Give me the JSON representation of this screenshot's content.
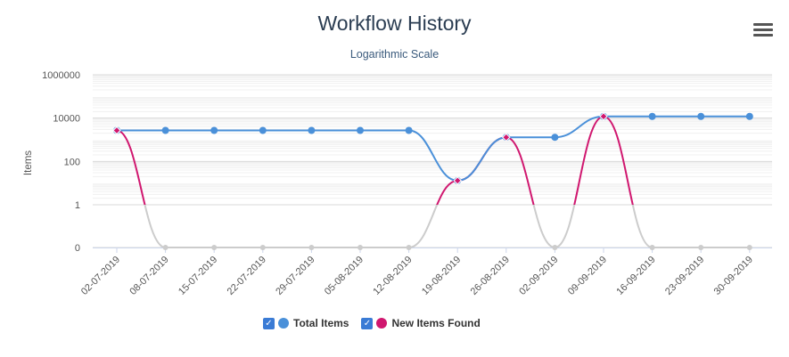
{
  "title": "Workflow History",
  "subtitle": "Logarithmic Scale",
  "menu_icon": "hamburger-menu-icon",
  "chart_data": {
    "type": "line",
    "yscale": "log",
    "ylabel": "Items",
    "y_ticks": [
      "1000000",
      "10000",
      "100",
      "1",
      "0"
    ],
    "categories": [
      "02-07-2019",
      "08-07-2019",
      "15-07-2019",
      "22-07-2019",
      "29-07-2019",
      "05-08-2019",
      "12-08-2019",
      "19-08-2019",
      "26-08-2019",
      "02-09-2019",
      "09-09-2019",
      "16-09-2019",
      "23-09-2019",
      "30-09-2019"
    ],
    "series": [
      {
        "name": "Total Items",
        "color": "#4a90d9",
        "values": [
          2700,
          2700,
          2700,
          2700,
          2700,
          2700,
          2700,
          13,
          1300,
          1300,
          12000,
          12000,
          12000,
          12000
        ]
      },
      {
        "name": "New Items Found",
        "color": "#d0176f",
        "values": [
          2700,
          0,
          0,
          0,
          0,
          0,
          0,
          13,
          1300,
          0,
          12000,
          0,
          0,
          0
        ]
      }
    ],
    "grid": true,
    "legend": "bottom-center"
  },
  "legend": {
    "items": [
      {
        "label": "Total Items",
        "color": "#4a90d9",
        "checked": true
      },
      {
        "label": "New Items Found",
        "color": "#d0176f",
        "checked": true
      }
    ]
  }
}
